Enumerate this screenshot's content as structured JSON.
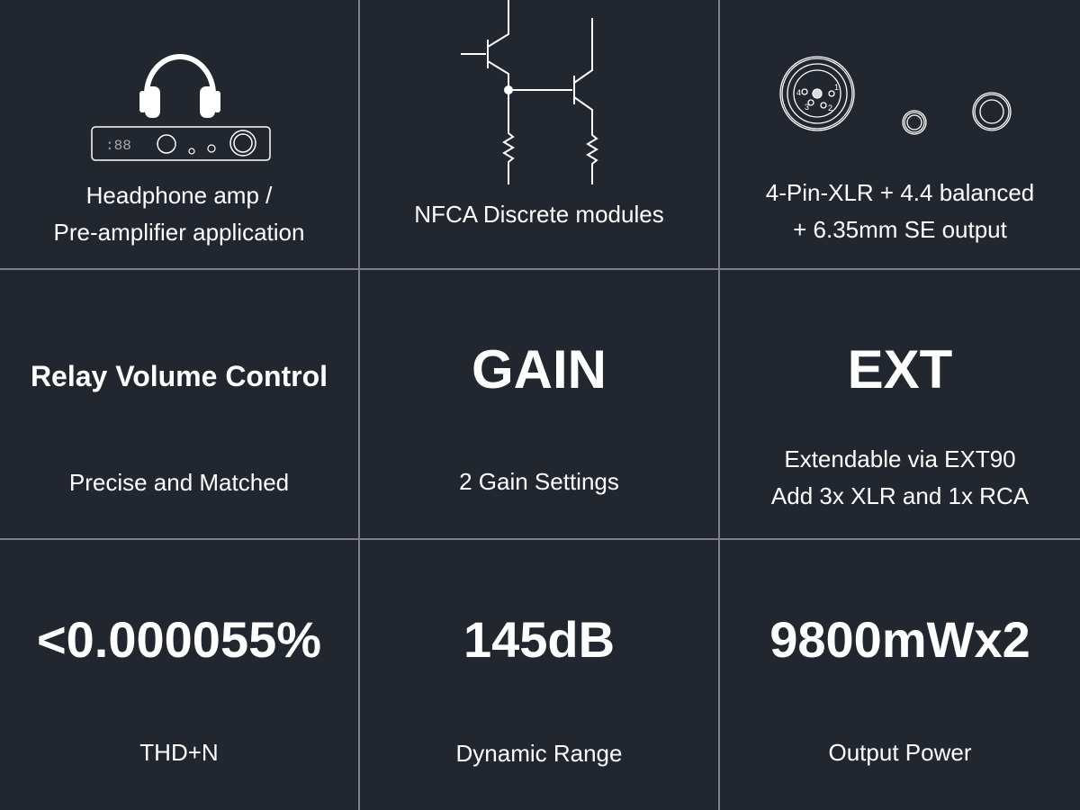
{
  "features": [
    {
      "lines": [
        "Headphone amp /",
        "Pre-amplifier application"
      ],
      "icon": "headphone-amp-icon"
    },
    {
      "lines": [
        "NFCA Discrete modules"
      ],
      "icon": "transistor-circuit-icon"
    },
    {
      "lines": [
        "4-Pin-XLR + 4.4 balanced",
        "+ 6.35mm SE output"
      ],
      "icon": "output-connectors-icon",
      "xlr_pins": [
        "1",
        "2",
        "3",
        "4"
      ]
    },
    {
      "headline": "Relay Volume Control",
      "lines": [
        "Precise and Matched"
      ]
    },
    {
      "headline": "GAIN",
      "lines": [
        "2 Gain Settings"
      ]
    },
    {
      "headline": "EXT",
      "lines": [
        "Extendable via EXT90",
        "Add 3x XLR and 1x RCA"
      ]
    },
    {
      "headline": "<0.000055%",
      "lines": [
        "THD+N"
      ]
    },
    {
      "headline": "145dB",
      "lines": [
        "Dynamic Range"
      ]
    },
    {
      "headline": "9800mWx2",
      "lines": [
        "Output Power"
      ]
    }
  ],
  "colors": {
    "background": "#22262e",
    "divider": "#7d8087",
    "foreground": "#ffffff"
  }
}
